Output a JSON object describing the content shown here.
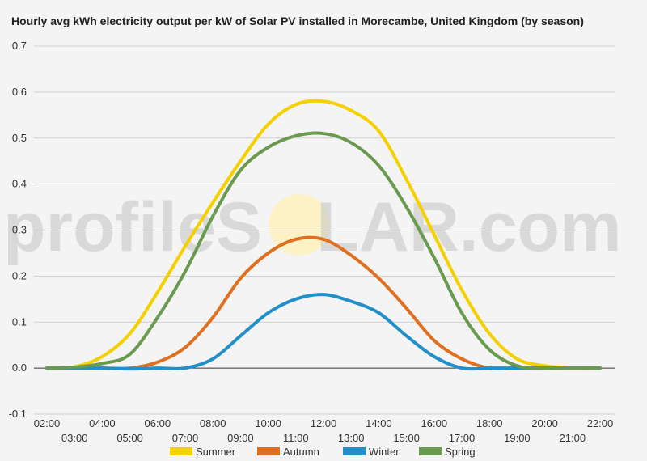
{
  "title": "Hourly avg kWh electricity output per kW of Solar PV installed in Morecambe, United Kingdom (by season)",
  "watermark": {
    "prefix": "profileS",
    "o": "O",
    "suffix": "LAR.com"
  },
  "chart_data": {
    "type": "line",
    "title": "Hourly avg kWh electricity output per kW of Solar PV installed in Morecambe, United Kingdom (by season)",
    "xlabel": "",
    "ylabel": "",
    "ylim": [
      -0.1,
      0.7
    ],
    "yticks": [
      "0.7",
      "0.6",
      "0.5",
      "0.4",
      "0.3",
      "0.2",
      "0.1",
      "0.0",
      "-0.1"
    ],
    "xticks_top": [
      "02:00",
      "04:00",
      "06:00",
      "08:00",
      "10:00",
      "12:00",
      "14:00",
      "16:00",
      "18:00",
      "20:00",
      "22:00"
    ],
    "xticks_bottom": [
      "03:00",
      "05:00",
      "07:00",
      "09:00",
      "11:00",
      "13:00",
      "15:00",
      "17:00",
      "19:00",
      "21:00"
    ],
    "x": [
      2,
      3,
      4,
      5,
      6,
      7,
      8,
      9,
      10,
      11,
      12,
      13,
      14,
      15,
      16,
      17,
      18,
      19,
      20,
      21,
      22
    ],
    "grid": true,
    "legend_position": "bottom",
    "series": [
      {
        "name": "Summer",
        "color": "#f5d000",
        "values": [
          0.0,
          0.003,
          0.025,
          0.075,
          0.165,
          0.265,
          0.36,
          0.45,
          0.53,
          0.573,
          0.58,
          0.56,
          0.515,
          0.41,
          0.29,
          0.17,
          0.075,
          0.02,
          0.005,
          0.0,
          0.0
        ]
      },
      {
        "name": "Autumn",
        "color": "#e07020",
        "values": [
          0.0,
          0.0,
          0.0,
          0.0,
          0.013,
          0.045,
          0.11,
          0.195,
          0.25,
          0.28,
          0.28,
          0.245,
          0.195,
          0.13,
          0.06,
          0.02,
          0.0,
          0.0,
          0.0,
          0.0,
          0.0
        ]
      },
      {
        "name": "Winter",
        "color": "#2290c8",
        "values": [
          0.0,
          0.0,
          0.0,
          -0.002,
          0.0,
          0.0,
          0.02,
          0.07,
          0.12,
          0.15,
          0.16,
          0.145,
          0.12,
          0.07,
          0.025,
          0.0,
          0.0,
          0.0,
          0.0,
          0.0,
          0.0
        ]
      },
      {
        "name": "Spring",
        "color": "#6a9a50",
        "values": [
          0.0,
          0.002,
          0.01,
          0.03,
          0.11,
          0.21,
          0.33,
          0.43,
          0.48,
          0.505,
          0.51,
          0.49,
          0.44,
          0.35,
          0.24,
          0.12,
          0.04,
          0.005,
          0.0,
          0.0,
          0.0
        ]
      }
    ]
  }
}
